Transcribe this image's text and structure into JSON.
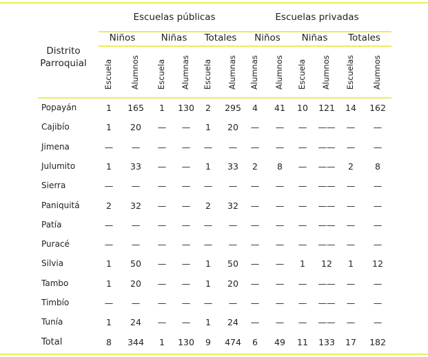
{
  "table": {
    "row_header": [
      "Distrito",
      "Parroquial"
    ],
    "groups": [
      "Escuelas públicas",
      "Escuelas privadas"
    ],
    "subgroups": [
      "Niños",
      "Niñas",
      "Totales",
      "Niños",
      "Niñas",
      "Totales"
    ],
    "columns": [
      "Escuela",
      "Alumnos",
      "Escuela",
      "Alumnas",
      "Escuela",
      "Alumnas",
      "Alumnas",
      "Alumnos",
      "Escuela",
      "Alumnos",
      "Escuelas",
      "Alumnos"
    ],
    "rows": [
      {
        "name": "Popayán",
        "values": [
          "1",
          "165",
          "1",
          "130",
          "2",
          "295",
          "4",
          "41",
          "10",
          "121",
          "14",
          "162"
        ]
      },
      {
        "name": "Cajibío",
        "values": [
          "1",
          "20",
          "—",
          "—",
          "1",
          "20",
          "—",
          "—",
          "—",
          "——",
          "—",
          "—"
        ]
      },
      {
        "name": "Jimena",
        "values": [
          "—",
          "—",
          "—",
          "—",
          "—",
          "—",
          "—",
          "—",
          "—",
          "——",
          "—",
          "—"
        ]
      },
      {
        "name": "Julumito",
        "values": [
          "1",
          "33",
          "—",
          "—",
          "1",
          "33",
          "2",
          "8",
          "—",
          "——",
          "2",
          "8"
        ]
      },
      {
        "name": "Sierra",
        "values": [
          "—",
          "—",
          "—",
          "—",
          "—",
          "—",
          "—",
          "—",
          "—",
          "——",
          "—",
          "—"
        ]
      },
      {
        "name": "Paniquitá",
        "values": [
          "2",
          "32",
          "—",
          "—",
          "2",
          "32",
          "—",
          "—",
          "—",
          "——",
          "—",
          "—"
        ]
      },
      {
        "name": "Patía",
        "values": [
          "—",
          "—",
          "—",
          "—",
          "—",
          "—",
          "—",
          "—",
          "—",
          "——",
          "—",
          "—"
        ]
      },
      {
        "name": "Puracé",
        "values": [
          "—",
          "—",
          "—",
          "—",
          "—",
          "—",
          "—",
          "—",
          "—",
          "——",
          "—",
          "—"
        ]
      },
      {
        "name": "Silvia",
        "values": [
          "1",
          "50",
          "—",
          "—",
          "1",
          "50",
          "—",
          "—",
          "1",
          "12",
          "1",
          "12"
        ]
      },
      {
        "name": "Tambo",
        "values": [
          "1",
          "20",
          "—",
          "—",
          "1",
          "20",
          "—",
          "—",
          "—",
          "——",
          "—",
          "—"
        ]
      },
      {
        "name": "Timbío",
        "values": [
          "—",
          "—",
          "—",
          "—",
          "—",
          "—",
          "—",
          "—",
          "—",
          "——",
          "—",
          "—"
        ]
      },
      {
        "name": "Tunía",
        "values": [
          "1",
          "24",
          "—",
          "—",
          "1",
          "24",
          "—",
          "—",
          "—",
          "——",
          "—",
          "—"
        ]
      },
      {
        "name": "Total",
        "values": [
          "8",
          "344",
          "1",
          "130",
          "9",
          "474",
          "6",
          "49",
          "11",
          "133",
          "17",
          "182"
        ]
      }
    ],
    "rule_color": "#ecec5a"
  }
}
